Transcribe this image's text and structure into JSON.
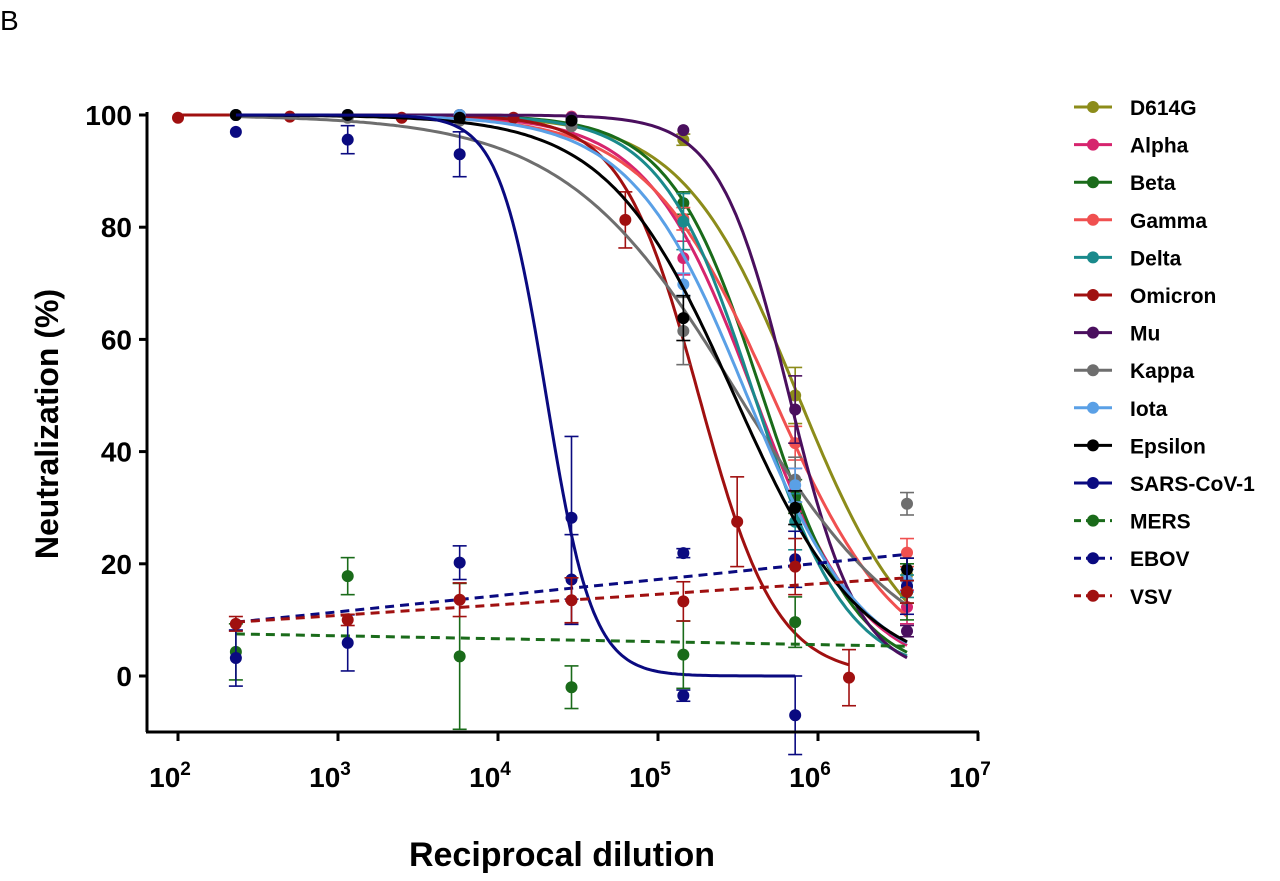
{
  "panel_label": "B",
  "chart_data": {
    "type": "scatter",
    "title": "",
    "xlabel": "Reciprocal dilution",
    "ylabel": "Neutralization (%)",
    "xscale": "log",
    "xlim": [
      100,
      10000000
    ],
    "ylim": [
      -10,
      100
    ],
    "xticks": [
      100,
      1000,
      10000,
      100000,
      1000000,
      10000000
    ],
    "xtick_labels": [
      [
        "10",
        "2"
      ],
      [
        "10",
        "3"
      ],
      [
        "10",
        "4"
      ],
      [
        "10",
        "5"
      ],
      [
        "10",
        "6"
      ],
      [
        "10",
        "7"
      ]
    ],
    "yticks": [
      0,
      20,
      40,
      60,
      80,
      100
    ],
    "ytick_labels": [
      "0",
      "20",
      "40",
      "60",
      "80",
      "100"
    ],
    "grid": false,
    "legend_position": "right",
    "series": [
      {
        "name": "D614G",
        "color": "#8c8c1a",
        "dash": false,
        "x": [
          230,
          1150,
          5760,
          28800,
          144000,
          720000,
          3600000
        ],
        "y": [
          100,
          100,
          100,
          99.5,
          95.6,
          50,
          18
        ],
        "err": [
          0,
          0,
          0,
          0,
          1,
          5,
          3
        ],
        "fit": {
          "top": 100,
          "bottom": 0,
          "ic50": 750000,
          "hill": 1.2
        }
      },
      {
        "name": "Alpha",
        "color": "#d6246e",
        "dash": false,
        "x": [
          230,
          1150,
          5760,
          28800,
          144000,
          720000,
          3600000
        ],
        "y": [
          100,
          100,
          100,
          99.7,
          74.5,
          33,
          12.3
        ],
        "err": [
          0,
          0,
          0,
          0,
          3,
          4,
          3
        ],
        "fit": {
          "top": 100,
          "bottom": 0,
          "ic50": 400000,
          "hill": 1.3
        }
      },
      {
        "name": "Beta",
        "color": "#1a6b1a",
        "dash": false,
        "x": [
          230,
          1150,
          5760,
          28800,
          144000,
          720000,
          3600000
        ],
        "y": [
          100,
          100,
          100,
          99.5,
          84.3,
          32,
          15
        ],
        "err": [
          0,
          0,
          0,
          0,
          2,
          3,
          2
        ],
        "fit": {
          "top": 100,
          "bottom": 0,
          "ic50": 450000,
          "hill": 1.5
        }
      },
      {
        "name": "Gamma",
        "color": "#f05050",
        "dash": false,
        "x": [
          230,
          1150,
          5760,
          28800,
          144000,
          720000,
          3600000
        ],
        "y": [
          100,
          100,
          100,
          99.5,
          81.5,
          41.5,
          22
        ],
        "err": [
          0,
          0,
          0,
          0,
          2,
          3,
          2.5
        ],
        "fit": {
          "top": 100,
          "bottom": 0,
          "ic50": 520000,
          "hill": 1.1
        }
      },
      {
        "name": "Delta",
        "color": "#1a8a8c",
        "dash": false,
        "x": [
          230,
          1150,
          5760,
          28800,
          144000,
          720000,
          3600000
        ],
        "y": [
          100,
          100,
          100,
          99.5,
          81,
          27.5,
          16
        ],
        "err": [
          0,
          0,
          0,
          0,
          5,
          5,
          2
        ],
        "fit": {
          "top": 100,
          "bottom": 0,
          "ic50": 400000,
          "hill": 1.5
        }
      },
      {
        "name": "Omicron",
        "color": "#a01010",
        "dash": false,
        "x": [
          100,
          500,
          2500,
          12500,
          62500,
          312500,
          1562500
        ],
        "y": [
          99.5,
          99.7,
          99.5,
          99.5,
          81.3,
          27.5,
          -0.3
        ],
        "err": [
          0,
          0,
          0,
          0,
          5,
          8,
          5
        ],
        "fit": {
          "top": 100,
          "bottom": 0,
          "ic50": 180000,
          "hill": 1.8
        }
      },
      {
        "name": "Mu",
        "color": "#4a0f5e",
        "dash": false,
        "x": [
          230,
          1150,
          5760,
          28800,
          144000,
          720000,
          3600000
        ],
        "y": [
          100,
          100,
          100,
          99.5,
          97.3,
          47.5,
          8
        ],
        "err": [
          0,
          0,
          0,
          0,
          0.5,
          6,
          1
        ],
        "fit": {
          "top": 100,
          "bottom": 0,
          "ic50": 660000,
          "hill": 2
        }
      },
      {
        "name": "Kappa",
        "color": "#6e6e6e",
        "dash": false,
        "x": [
          230,
          1150,
          5760,
          28800,
          144000,
          720000,
          3600000
        ],
        "y": [
          100,
          99.5,
          99,
          98,
          61.5,
          35,
          30.7
        ],
        "err": [
          0,
          0,
          0,
          0,
          6,
          4,
          2
        ],
        "fit": {
          "top": 100,
          "bottom": 0,
          "ic50": 320000,
          "hill": 0.8
        }
      },
      {
        "name": "Iota",
        "color": "#5aa0e6",
        "dash": false,
        "x": [
          230,
          1150,
          5760,
          28800,
          144000,
          720000,
          3600000
        ],
        "y": [
          100,
          100,
          100,
          99,
          69.8,
          34,
          17
        ],
        "err": [
          0,
          0,
          0,
          0,
          2,
          3,
          2
        ],
        "fit": {
          "top": 100,
          "bottom": 0,
          "ic50": 360000,
          "hill": 1.2
        }
      },
      {
        "name": "Epsilon",
        "color": "#000000",
        "dash": false,
        "x": [
          230,
          1150,
          5760,
          28800,
          144000,
          720000,
          3600000
        ],
        "y": [
          100,
          100,
          99.5,
          99,
          63.8,
          30,
          19
        ],
        "err": [
          0,
          0,
          0,
          0,
          4,
          3,
          2
        ],
        "fit": {
          "top": 100,
          "bottom": 0,
          "ic50": 300000,
          "hill": 1.1
        }
      },
      {
        "name": "SARS-CoV-1",
        "color": "#0a0a80",
        "dash": false,
        "x": [
          230,
          1150,
          5760,
          28800,
          144000,
          720000
        ],
        "y": [
          97,
          95.6,
          93,
          28.2,
          -3.5,
          -7
        ],
        "err": [
          0,
          2.5,
          4,
          14.5,
          1,
          7
        ],
        "fit": {
          "top": 100,
          "bottom": 0,
          "ic50": 20000,
          "hill": 3
        }
      },
      {
        "name": "MERS",
        "color": "#1a6b1a",
        "dash": true,
        "x": [
          230,
          1150,
          5760,
          28800,
          144000,
          720000,
          3600000
        ],
        "y": [
          4.3,
          17.8,
          3.5,
          -2,
          3.8,
          9.6,
          15
        ],
        "err": [
          5,
          3.3,
          13,
          3.8,
          6,
          4.5,
          5
        ],
        "linear": {
          "y_start": 7.5,
          "y_end": 5.3
        }
      },
      {
        "name": "EBOV",
        "color": "#0a0a80",
        "dash": true,
        "x": [
          230,
          1150,
          5760,
          28800,
          144000,
          720000,
          3600000
        ],
        "y": [
          3.2,
          5.9,
          20.2,
          17.2,
          21.9,
          20.8,
          16
        ],
        "err": [
          5,
          5,
          3,
          8,
          0.8,
          5,
          5
        ],
        "linear": {
          "y_start": 9.6,
          "y_end": 21.7
        }
      },
      {
        "name": "VSV",
        "color": "#a01010",
        "dash": true,
        "x": [
          230,
          1150,
          5760,
          28800,
          144000,
          720000,
          3600000
        ],
        "y": [
          9.3,
          10,
          13.6,
          13.5,
          13.3,
          19.5,
          15
        ],
        "err": [
          1.3,
          1,
          3,
          4,
          3.5,
          5,
          2
        ],
        "linear": {
          "y_start": 9.6,
          "y_end": 17.5
        }
      }
    ]
  }
}
